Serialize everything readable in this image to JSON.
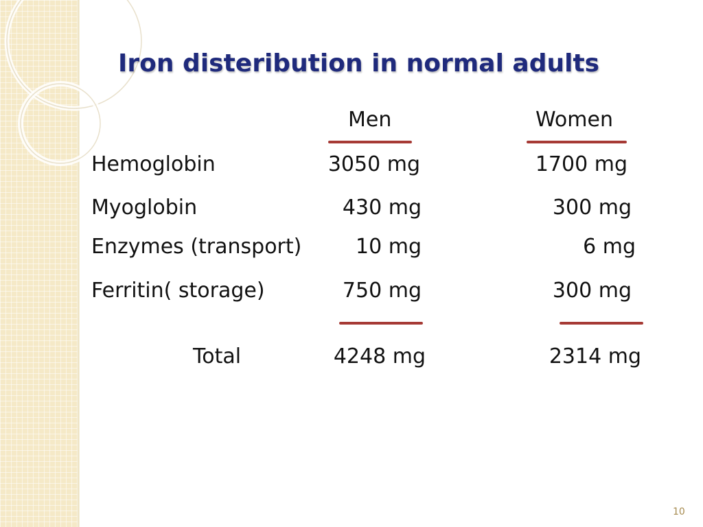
{
  "slide": {
    "title": "Iron disteribution in normal adults",
    "page_number": "10"
  },
  "table": {
    "columns": [
      "Men",
      "Women"
    ],
    "rows": [
      {
        "label": "Hemoglobin",
        "men": "3050 mg",
        "women": "1700 mg"
      },
      {
        "label": "Myoglobin",
        "men": "430 mg",
        "women": "300 mg"
      },
      {
        "label": "Enzymes (transport)",
        "men": "10 mg",
        "women": "6 mg"
      },
      {
        "label": "Ferritin( storage)",
        "men": "750 mg",
        "women": "300 mg"
      }
    ],
    "total": {
      "label": "Total",
      "men": "4248 mg",
      "women": "2314 mg"
    }
  },
  "colors": {
    "title": "#1f2a7c",
    "rule": "#a63a35",
    "side_strip": "#f5e9c7",
    "page_number": "#a68a4f"
  }
}
